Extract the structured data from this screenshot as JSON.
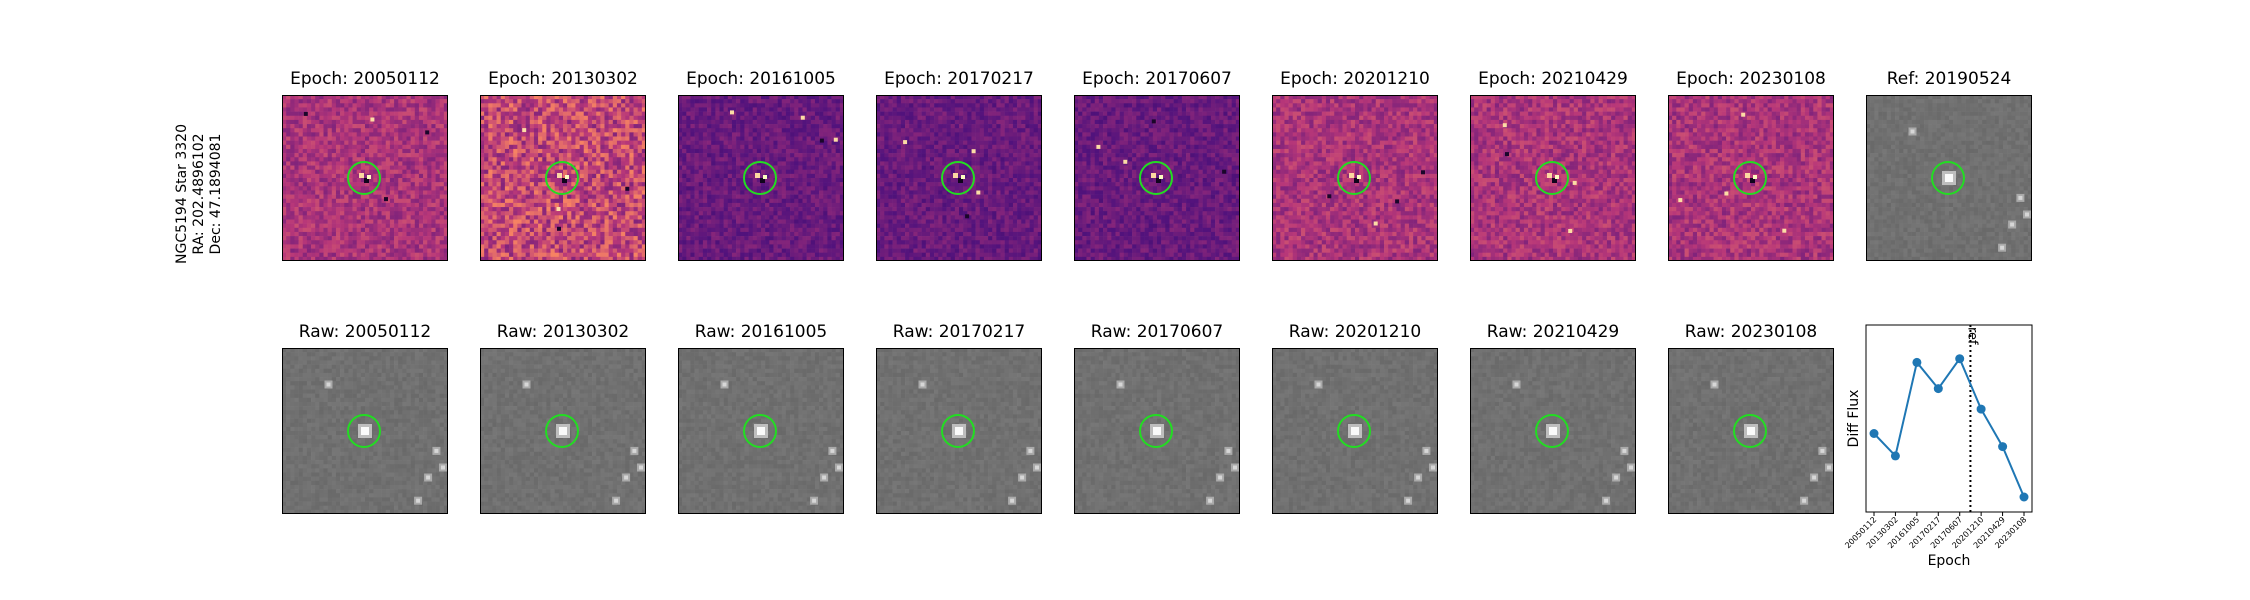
{
  "target_label": {
    "line1": "NGC5194 Star 3320",
    "line2": "RA: 202.4896102",
    "line3": "Dec: 47.1894081"
  },
  "diff_panels": [
    {
      "title": "Epoch: 20050112",
      "palette": "magma-mid"
    },
    {
      "title": "Epoch: 20130302",
      "palette": "magma-bright"
    },
    {
      "title": "Epoch: 20161005",
      "palette": "magma-dark"
    },
    {
      "title": "Epoch: 20170217",
      "palette": "magma-dark"
    },
    {
      "title": "Epoch: 20170607",
      "palette": "magma-dark"
    },
    {
      "title": "Epoch: 20201210",
      "palette": "magma-mid"
    },
    {
      "title": "Epoch: 20210429",
      "palette": "magma-mid"
    },
    {
      "title": "Epoch: 20230108",
      "palette": "magma-mid"
    }
  ],
  "ref_panel": {
    "title": "Ref: 20190524"
  },
  "raw_panels": [
    {
      "title": "Raw: 20050112"
    },
    {
      "title": "Raw: 20130302"
    },
    {
      "title": "Raw: 20161005"
    },
    {
      "title": "Raw: 20170217"
    },
    {
      "title": "Raw: 20170607"
    },
    {
      "title": "Raw: 20201210"
    },
    {
      "title": "Raw: 20210429"
    },
    {
      "title": "Raw: 20230108"
    }
  ],
  "colors": {
    "circle": "#22dd22",
    "line": "#1f77b4",
    "ref_line": "#000000"
  },
  "chart_data": {
    "type": "line",
    "xlabel": "Epoch",
    "ylabel": "Diff Flux",
    "categories": [
      "20050112",
      "20130302",
      "20161005",
      "20170217",
      "20170607",
      "20201210",
      "20210429",
      "20230108"
    ],
    "values": [
      0.42,
      0.3,
      0.8,
      0.66,
      0.82,
      0.55,
      0.35,
      0.08
    ],
    "ylim": [
      0,
      1
    ],
    "y_ticks_shown": false,
    "reference_line": {
      "position_between": [
        "20170607",
        "20201210"
      ],
      "label": "ref",
      "style": "dotted"
    }
  }
}
